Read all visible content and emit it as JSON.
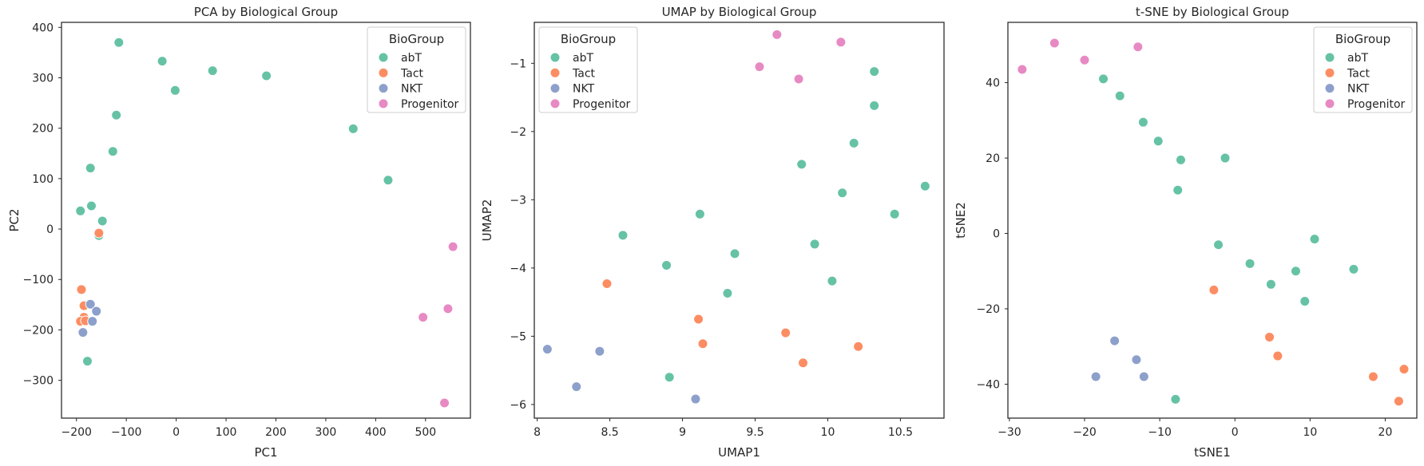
{
  "legend_title": "BioGroup",
  "groups": [
    {
      "name": "abT",
      "color": "#66c2a5"
    },
    {
      "name": "Tact",
      "color": "#fc8d62"
    },
    {
      "name": "NKT",
      "color": "#8da0cb"
    },
    {
      "name": "Progenitor",
      "color": "#e78ac3"
    }
  ],
  "chart_data": [
    {
      "type": "scatter",
      "title": "PCA by Biological Group",
      "xlabel": "PC1",
      "ylabel": "PC2",
      "xlim": [
        -230,
        590
      ],
      "ylim": [
        -375,
        410
      ],
      "xticks": [
        -200,
        -100,
        0,
        100,
        200,
        300,
        400,
        500
      ],
      "yticks": [
        -300,
        -200,
        -100,
        0,
        100,
        200,
        300,
        400
      ],
      "legend_position": "upper right",
      "grid": false,
      "series": [
        {
          "name": "abT",
          "points": [
            [
              -115,
              370
            ],
            [
              -28,
              333
            ],
            [
              73,
              314
            ],
            [
              181,
              304
            ],
            [
              -2,
              275
            ],
            [
              -120,
              226
            ],
            [
              -127,
              154
            ],
            [
              355,
              199
            ],
            [
              425,
              97
            ],
            [
              -172,
              121
            ],
            [
              -170,
              46
            ],
            [
              -192,
              36
            ],
            [
              -148,
              16
            ],
            [
              -155,
              -13
            ],
            [
              -178,
              -262
            ]
          ]
        },
        {
          "name": "Tact",
          "points": [
            [
              -155,
              -8
            ],
            [
              -190,
              -120
            ],
            [
              -185,
              -152
            ],
            [
              -185,
              -175
            ],
            [
              -192,
              -183
            ],
            [
              -182,
              -182
            ]
          ]
        },
        {
          "name": "NKT",
          "points": [
            [
              -172,
              -149
            ],
            [
              -160,
              -163
            ],
            [
              -168,
              -183
            ],
            [
              -187,
              -205
            ]
          ]
        },
        {
          "name": "Progenitor",
          "points": [
            [
              555,
              -35
            ],
            [
              495,
              -175
            ],
            [
              545,
              -158
            ],
            [
              538,
              -345
            ]
          ]
        }
      ]
    },
    {
      "type": "scatter",
      "title": "UMAP by Biological Group",
      "xlabel": "UMAP1",
      "ylabel": "UMAP2",
      "xlim": [
        7.98,
        10.8
      ],
      "ylim": [
        -6.2,
        -0.4
      ],
      "xticks": [
        8.0,
        8.5,
        9.0,
        9.5,
        10.0,
        10.5
      ],
      "yticks": [
        -6,
        -5,
        -4,
        -3,
        -2,
        -1
      ],
      "legend_position": "upper left",
      "grid": false,
      "series": [
        {
          "name": "abT",
          "points": [
            [
              10.32,
              -1.12
            ],
            [
              10.32,
              -1.62
            ],
            [
              10.18,
              -2.17
            ],
            [
              9.82,
              -2.48
            ],
            [
              10.1,
              -2.9
            ],
            [
              10.67,
              -2.8
            ],
            [
              10.46,
              -3.21
            ],
            [
              9.12,
              -3.21
            ],
            [
              8.59,
              -3.52
            ],
            [
              9.91,
              -3.65
            ],
            [
              9.36,
              -3.79
            ],
            [
              8.89,
              -3.96
            ],
            [
              10.03,
              -4.19
            ],
            [
              9.31,
              -4.37
            ],
            [
              8.91,
              -5.6
            ]
          ]
        },
        {
          "name": "Tact",
          "points": [
            [
              8.48,
              -4.23
            ],
            [
              9.11,
              -4.75
            ],
            [
              9.71,
              -4.95
            ],
            [
              9.14,
              -5.11
            ],
            [
              10.21,
              -5.15
            ],
            [
              9.83,
              -5.39
            ]
          ]
        },
        {
          "name": "NKT",
          "points": [
            [
              8.07,
              -5.19
            ],
            [
              8.43,
              -5.22
            ],
            [
              8.27,
              -5.74
            ],
            [
              9.09,
              -5.92
            ]
          ]
        },
        {
          "name": "Progenitor",
          "points": [
            [
              9.65,
              -0.58
            ],
            [
              10.09,
              -0.69
            ],
            [
              9.53,
              -1.05
            ],
            [
              9.8,
              -1.23
            ]
          ]
        }
      ]
    },
    {
      "type": "scatter",
      "title": "t-SNE by Biological Group",
      "xlabel": "tSNE1",
      "ylabel": "tSNE2",
      "xlim": [
        -30.2,
        24.2
      ],
      "ylim": [
        -49,
        56
      ],
      "xticks": [
        -30,
        -20,
        -10,
        0,
        10,
        20
      ],
      "yticks": [
        -40,
        -20,
        0,
        20,
        40
      ],
      "legend_position": "upper right",
      "grid": false,
      "series": [
        {
          "name": "abT",
          "points": [
            [
              -17.5,
              41
            ],
            [
              -15.3,
              36.5
            ],
            [
              -12.2,
              29.5
            ],
            [
              -10.2,
              24.5
            ],
            [
              -7.2,
              19.5
            ],
            [
              -1.3,
              20
            ],
            [
              -7.6,
              11.5
            ],
            [
              -2.2,
              -3
            ],
            [
              10.6,
              -1.5
            ],
            [
              2,
              -8
            ],
            [
              8.1,
              -10
            ],
            [
              15.8,
              -9.5
            ],
            [
              4.8,
              -13.5
            ],
            [
              9.3,
              -18
            ],
            [
              -7.9,
              -44
            ]
          ]
        },
        {
          "name": "Tact",
          "points": [
            [
              -2.8,
              -15
            ],
            [
              4.6,
              -27.5
            ],
            [
              5.7,
              -32.5
            ],
            [
              18.4,
              -38
            ],
            [
              22.5,
              -36
            ],
            [
              21.8,
              -44.5
            ]
          ]
        },
        {
          "name": "NKT",
          "points": [
            [
              -16,
              -28.5
            ],
            [
              -13.1,
              -33.5
            ],
            [
              -18.5,
              -38
            ],
            [
              -12.1,
              -38
            ]
          ]
        },
        {
          "name": "Progenitor",
          "points": [
            [
              -28.3,
              43.5
            ],
            [
              -24,
              50.5
            ],
            [
              -20,
              46
            ],
            [
              -12.9,
              49.5
            ]
          ]
        }
      ]
    }
  ]
}
